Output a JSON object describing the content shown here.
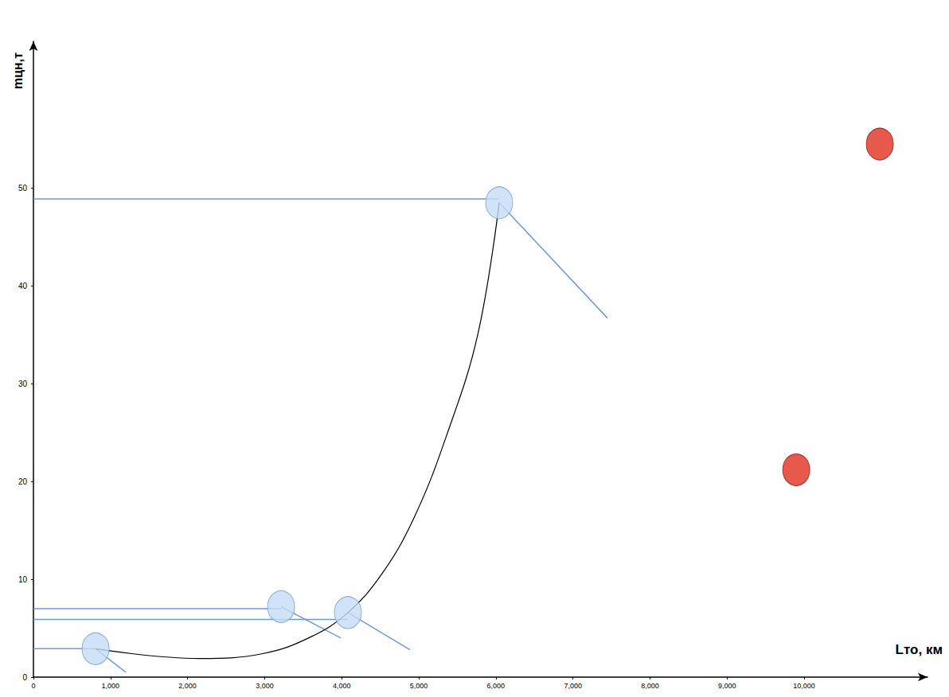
{
  "chart_data": {
    "type": "scatter",
    "xlabel": "Lто, км",
    "ylabel": "mцн,т",
    "xlim": [
      0,
      11600
    ],
    "ylim": [
      0,
      65
    ],
    "xticks": [
      0,
      1000,
      2000,
      3000,
      4000,
      5000,
      6000,
      7000,
      8000,
      9000,
      10000
    ],
    "yticks": [
      0,
      10,
      20,
      30,
      40,
      50
    ],
    "grid": false,
    "series": [
      {
        "type": "line",
        "color": "#000000",
        "line_style": "solid",
        "x": [
          806,
          2149,
          2975,
          3595,
          4080,
          4525,
          4938,
          5351,
          5764,
          6043
        ],
        "values": [
          2.9,
          1.9,
          2.4,
          4.1,
          6.6,
          10.6,
          16.3,
          24.5,
          35.0,
          48.5
        ]
      },
      {
        "type": "line",
        "color": "#6f9bd8",
        "line_style": "solid",
        "x": [
          0,
          806
        ],
        "values": [
          2.9,
          2.9
        ]
      },
      {
        "type": "line",
        "color": "#6f9bd8",
        "line_style": "solid",
        "x": [
          0,
          3213
        ],
        "values": [
          7.0,
          7.0
        ]
      },
      {
        "type": "line",
        "color": "#6f9bd8",
        "line_style": "solid",
        "x": [
          0,
          4080
        ],
        "values": [
          5.9,
          5.9
        ]
      },
      {
        "type": "line",
        "color": "#6f9bd8",
        "line_style": "solid",
        "x": [
          0,
          6043
        ],
        "values": [
          48.9,
          48.9
        ]
      },
      {
        "type": "line",
        "color": "#6f9bd8",
        "line_style": "solid",
        "x": [
          806,
          1198
        ],
        "values": [
          2.9,
          0.5
        ]
      },
      {
        "type": "line",
        "color": "#6f9bd8",
        "line_style": "solid",
        "x": [
          3213,
          3988
        ],
        "values": [
          7.2,
          4.0
        ]
      },
      {
        "type": "line",
        "color": "#6f9bd8",
        "line_style": "solid",
        "x": [
          4080,
          4886
        ],
        "values": [
          6.6,
          2.8
        ]
      },
      {
        "type": "line",
        "color": "#6f9bd8",
        "line_style": "solid",
        "x": [
          6043,
          7448
        ],
        "values": [
          48.5,
          36.7
        ]
      },
      {
        "type": "scatter",
        "color": "#c5dcf5",
        "marker": "ellipse",
        "x": [
          806,
          3213,
          4080,
          6043
        ],
        "values": [
          2.9,
          7.2,
          6.6,
          48.5
        ]
      },
      {
        "type": "scatter",
        "color": "#e0301e",
        "marker": "ellipse",
        "x": [
          9897,
          10981
        ],
        "values": [
          21.2,
          54.5
        ]
      }
    ]
  }
}
